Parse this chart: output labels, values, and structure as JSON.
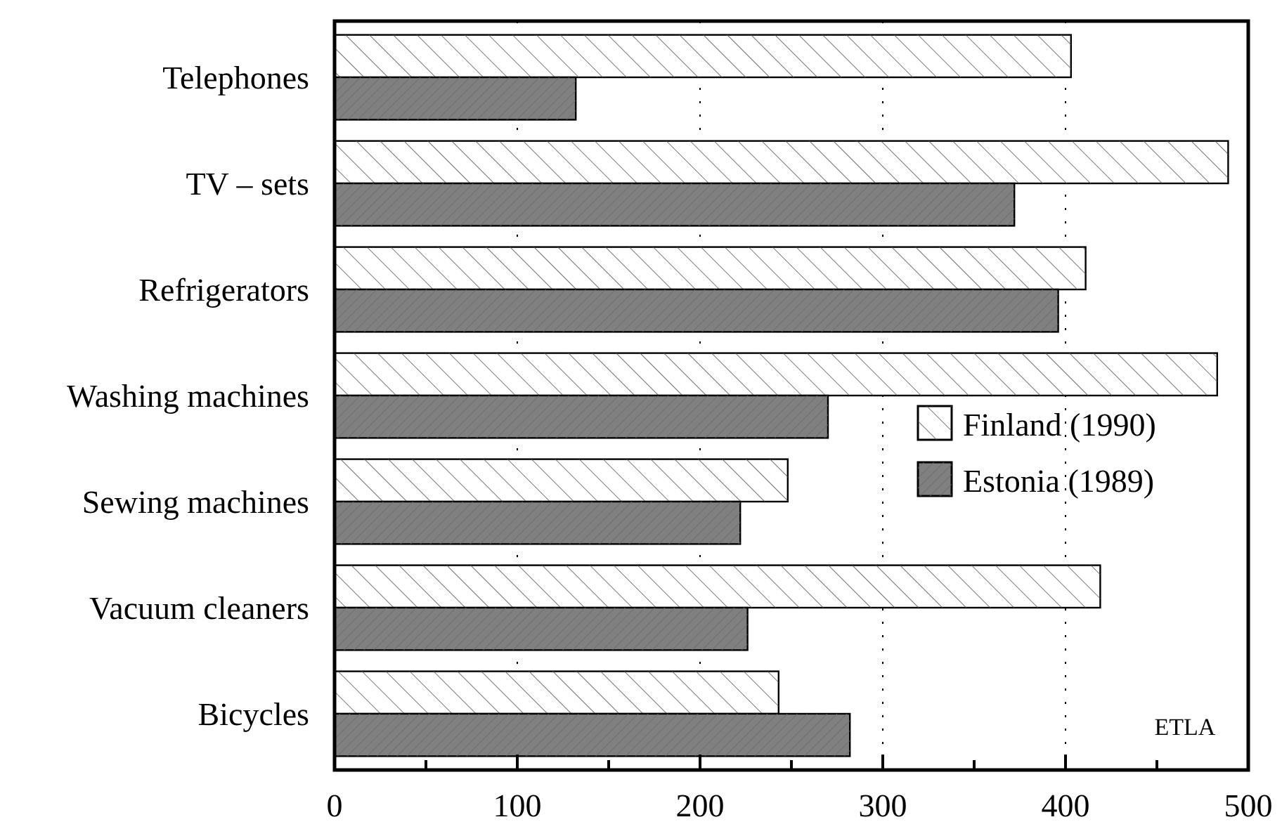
{
  "chart_data": {
    "type": "bar",
    "orientation": "horizontal",
    "categories": [
      "Telephones",
      "TV – sets",
      "Refrigerators",
      "Washing machines",
      "Sewing machines",
      "Vacuum cleaners",
      "Bicycles"
    ],
    "series": [
      {
        "name": "Finland (1990)",
        "color": "#ffffff",
        "values": [
          403,
          489,
          411,
          483,
          248,
          419,
          243
        ]
      },
      {
        "name": "Estonia (1989)",
        "color": "#808080",
        "values": [
          132,
          372,
          396,
          270,
          222,
          226,
          282
        ]
      }
    ],
    "xlim": [
      0,
      500
    ],
    "xticks": [
      0,
      {
        "value": 50,
        "label": null
      },
      100,
      {
        "value": 150,
        "label": null
      },
      200,
      {
        "value": 250,
        "label": null
      },
      300,
      {
        "value": 350,
        "label": null
      },
      400,
      {
        "value": 450,
        "label": null
      },
      500
    ],
    "grid": "x",
    "legend": "right",
    "annotations": [
      "ETLA"
    ]
  }
}
